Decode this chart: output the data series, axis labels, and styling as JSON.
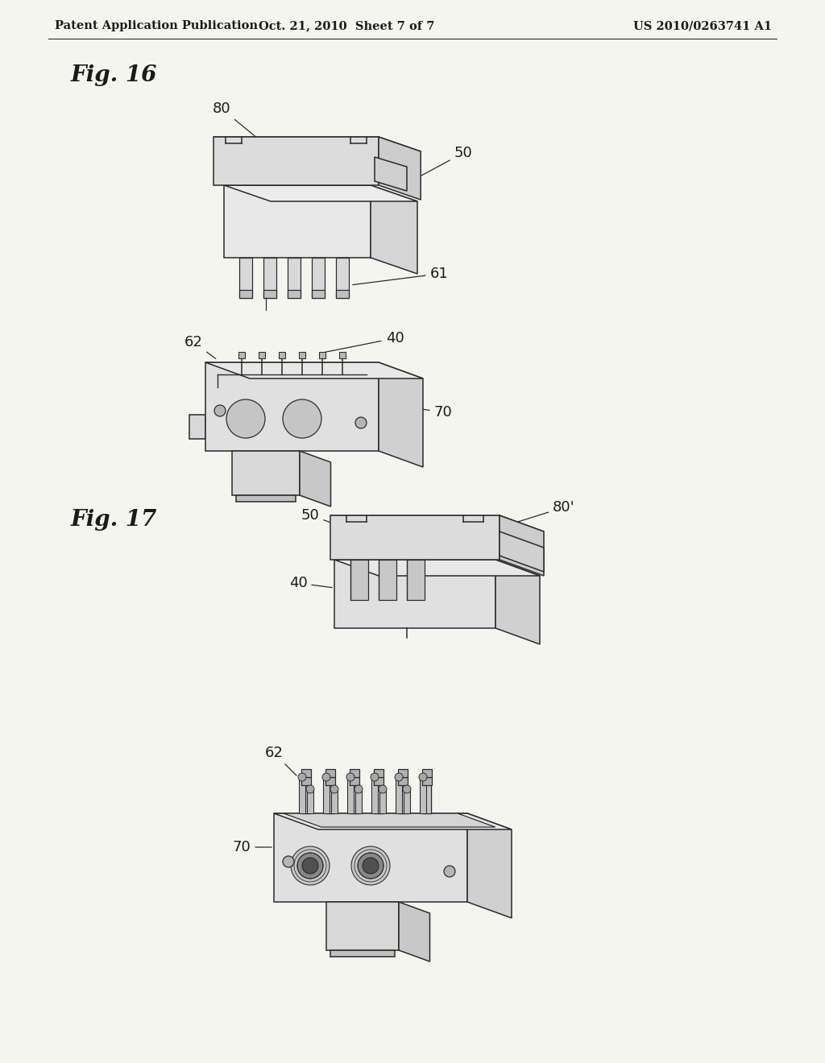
{
  "bg_color": "#f5f5f0",
  "header_left": "Patent Application Publication",
  "header_center": "Oct. 21, 2010  Sheet 7 of 7",
  "header_right": "US 2010/0263741 A1",
  "fig16_label": "Fig. 16",
  "fig17_label": "Fig. 17",
  "line_color": "#2a2a2a",
  "text_color": "#1a1a1a",
  "header_fontsize": 10.5,
  "fig_label_fontsize": 20,
  "part_label_fontsize": 13,
  "lw": 1.1
}
